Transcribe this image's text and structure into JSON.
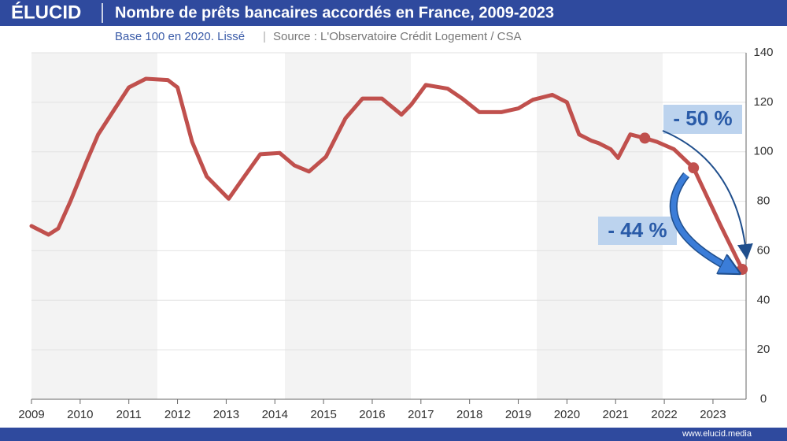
{
  "brand": "ÉLUCID",
  "footer": "www.elucid.media",
  "chart_data": {
    "type": "line",
    "title": "Nombre de prêts bancaires accordés en France, 2009-2023",
    "subtitle": "Base 100 en 2020. Lissé",
    "source": "Source :  L'Observatoire Crédit Logement / CSA",
    "color": "#c0504d",
    "x": [
      2009.0,
      2009.35,
      2009.55,
      2009.8,
      2010.13,
      2010.37,
      2010.7,
      2011.0,
      2011.35,
      2011.8,
      2012.0,
      2012.3,
      2012.6,
      2013.05,
      2013.3,
      2013.7,
      2014.1,
      2014.4,
      2014.7,
      2015.05,
      2015.45,
      2015.8,
      2016.2,
      2016.6,
      2016.8,
      2017.1,
      2017.55,
      2017.85,
      2018.2,
      2018.65,
      2019.0,
      2019.3,
      2019.7,
      2020.0,
      2020.25,
      2020.5,
      2020.65,
      2020.9,
      2021.05,
      2021.3,
      2021.6,
      2021.85,
      2022.2,
      2022.6,
      2023.15,
      2023.6
    ],
    "values": [
      70,
      66.5,
      69,
      80,
      96,
      107,
      117,
      126,
      129.5,
      129,
      126,
      104,
      90,
      81,
      88,
      99,
      99.5,
      94.5,
      92,
      98,
      113.5,
      121.5,
      121.5,
      115,
      119,
      127,
      125.5,
      121.5,
      116,
      116,
      117.5,
      121,
      123,
      120,
      107,
      104.5,
      103.5,
      101,
      97.5,
      107,
      105.5,
      104,
      101,
      93.5,
      70.5,
      52.5
    ],
    "markers": {
      "x": [
        2021.6,
        2022.6,
        2023.6
      ],
      "values": [
        105.5,
        93.5,
        52.5
      ]
    },
    "annotations": [
      "- 50 %",
      "- 44 %"
    ],
    "xlim": [
      2009,
      2023.68
    ],
    "xticks": [
      2009,
      2010,
      2011,
      2012,
      2013,
      2014,
      2015,
      2016,
      2017,
      2018,
      2019,
      2020,
      2021,
      2022,
      2023
    ],
    "ylim": [
      0,
      140
    ],
    "yticks": [
      0,
      20,
      40,
      60,
      80,
      100,
      120,
      140
    ],
    "grid": true
  }
}
